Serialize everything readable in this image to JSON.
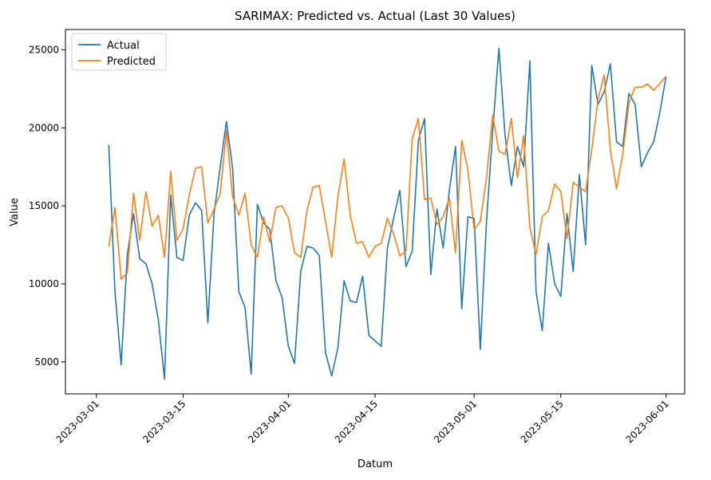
{
  "chart_data": {
    "type": "line",
    "title": "SARIMAX: Predicted vs. Actual (Last 30 Values)",
    "xlabel": "Datum",
    "ylabel": "Value",
    "x_range": [
      "2023-02-24",
      "2023-06-04"
    ],
    "ylim": [
      2950,
      26300
    ],
    "x_ticks": [
      "2023-03-01",
      "2023-03-15",
      "2023-04-01",
      "2023-04-15",
      "2023-05-01",
      "2023-05-15",
      "2023-06-01"
    ],
    "y_ticks": [
      5000,
      10000,
      15000,
      20000,
      25000
    ],
    "grid": false,
    "legend_position": "top-left",
    "series": [
      {
        "name": "Actual",
        "color": "#1f77b4",
        "points": [
          [
            "2023-03-03",
            18900
          ],
          [
            "2023-03-04",
            9500
          ],
          [
            "2023-03-05",
            4800
          ],
          [
            "2023-03-06",
            11900
          ],
          [
            "2023-03-07",
            14500
          ],
          [
            "2023-03-08",
            11600
          ],
          [
            "2023-03-09",
            11300
          ],
          [
            "2023-03-10",
            10000
          ],
          [
            "2023-03-11",
            7700
          ],
          [
            "2023-03-12",
            3900
          ],
          [
            "2023-03-13",
            15700
          ],
          [
            "2023-03-14",
            11700
          ],
          [
            "2023-03-15",
            11500
          ],
          [
            "2023-03-16",
            14400
          ],
          [
            "2023-03-17",
            15200
          ],
          [
            "2023-03-18",
            14700
          ],
          [
            "2023-03-19",
            7500
          ],
          [
            "2023-03-20",
            14500
          ],
          [
            "2023-03-21",
            17500
          ],
          [
            "2023-03-22",
            20400
          ],
          [
            "2023-03-23",
            17400
          ],
          [
            "2023-03-24",
            9500
          ],
          [
            "2023-03-25",
            8500
          ],
          [
            "2023-03-26",
            4200
          ],
          [
            "2023-03-27",
            15100
          ],
          [
            "2023-03-28",
            13900
          ],
          [
            "2023-03-29",
            13500
          ],
          [
            "2023-03-30",
            10200
          ],
          [
            "2023-03-31",
            9100
          ],
          [
            "2023-04-01",
            6000
          ],
          [
            "2023-04-02",
            4900
          ],
          [
            "2023-04-03",
            10800
          ],
          [
            "2023-04-04",
            12400
          ],
          [
            "2023-04-05",
            12300
          ],
          [
            "2023-04-06",
            11800
          ],
          [
            "2023-04-07",
            5600
          ],
          [
            "2023-04-08",
            4100
          ],
          [
            "2023-04-09",
            5900
          ],
          [
            "2023-04-10",
            10200
          ],
          [
            "2023-04-11",
            8900
          ],
          [
            "2023-04-12",
            8800
          ],
          [
            "2023-04-13",
            10500
          ],
          [
            "2023-04-14",
            6700
          ],
          [
            "2023-04-16",
            6000
          ],
          [
            "2023-04-17",
            12300
          ],
          [
            "2023-04-18",
            14200
          ],
          [
            "2023-04-19",
            16000
          ],
          [
            "2023-04-20",
            11100
          ],
          [
            "2023-04-21",
            12100
          ],
          [
            "2023-04-22",
            19200
          ],
          [
            "2023-04-23",
            20600
          ],
          [
            "2023-04-24",
            10600
          ],
          [
            "2023-04-25",
            14800
          ],
          [
            "2023-04-26",
            12300
          ],
          [
            "2023-04-27",
            16000
          ],
          [
            "2023-04-28",
            18800
          ],
          [
            "2023-04-29",
            8400
          ],
          [
            "2023-04-30",
            14300
          ],
          [
            "2023-05-01",
            14200
          ],
          [
            "2023-05-02",
            5800
          ],
          [
            "2023-05-03",
            14000
          ],
          [
            "2023-05-04",
            19800
          ],
          [
            "2023-05-05",
            25100
          ],
          [
            "2023-05-06",
            19500
          ],
          [
            "2023-05-07",
            16300
          ],
          [
            "2023-05-08",
            18800
          ],
          [
            "2023-05-09",
            17500
          ],
          [
            "2023-05-10",
            24300
          ],
          [
            "2023-05-11",
            9500
          ],
          [
            "2023-05-12",
            7000
          ],
          [
            "2023-05-13",
            12600
          ],
          [
            "2023-05-14",
            10000
          ],
          [
            "2023-05-15",
            9200
          ],
          [
            "2023-05-16",
            14500
          ],
          [
            "2023-05-17",
            10800
          ],
          [
            "2023-05-18",
            17000
          ],
          [
            "2023-05-19",
            12500
          ],
          [
            "2023-05-20",
            24000
          ],
          [
            "2023-05-21",
            21500
          ],
          [
            "2023-05-22",
            22300
          ],
          [
            "2023-05-23",
            24100
          ],
          [
            "2023-05-24",
            19100
          ],
          [
            "2023-05-25",
            18800
          ],
          [
            "2023-05-26",
            22200
          ],
          [
            "2023-05-27",
            21500
          ],
          [
            "2023-05-28",
            17500
          ],
          [
            "2023-05-29",
            18400
          ],
          [
            "2023-05-30",
            19100
          ],
          [
            "2023-05-31",
            21000
          ],
          [
            "2023-06-01",
            23300
          ]
        ]
      },
      {
        "name": "Predicted",
        "color": "#ff7f0e",
        "points": [
          [
            "2023-03-03",
            12400
          ],
          [
            "2023-03-04",
            14900
          ],
          [
            "2023-03-05",
            10300
          ],
          [
            "2023-03-06",
            10700
          ],
          [
            "2023-03-07",
            15800
          ],
          [
            "2023-03-08",
            12800
          ],
          [
            "2023-03-09",
            15900
          ],
          [
            "2023-03-10",
            13700
          ],
          [
            "2023-03-11",
            14400
          ],
          [
            "2023-03-12",
            11700
          ],
          [
            "2023-03-13",
            17200
          ],
          [
            "2023-03-14",
            12800
          ],
          [
            "2023-03-15",
            13500
          ],
          [
            "2023-03-16",
            15700
          ],
          [
            "2023-03-17",
            17400
          ],
          [
            "2023-03-18",
            17500
          ],
          [
            "2023-03-19",
            13900
          ],
          [
            "2023-03-20",
            14800
          ],
          [
            "2023-03-21",
            15800
          ],
          [
            "2023-03-22",
            19800
          ],
          [
            "2023-03-23",
            15600
          ],
          [
            "2023-03-24",
            14400
          ],
          [
            "2023-03-25",
            15800
          ],
          [
            "2023-03-26",
            12500
          ],
          [
            "2023-03-27",
            11700
          ],
          [
            "2023-03-28",
            14300
          ],
          [
            "2023-03-29",
            12700
          ],
          [
            "2023-03-30",
            14900
          ],
          [
            "2023-03-31",
            15000
          ],
          [
            "2023-04-01",
            14200
          ],
          [
            "2023-04-02",
            12000
          ],
          [
            "2023-04-03",
            11700
          ],
          [
            "2023-04-04",
            14700
          ],
          [
            "2023-04-05",
            16200
          ],
          [
            "2023-04-06",
            16300
          ],
          [
            "2023-04-07",
            14000
          ],
          [
            "2023-04-08",
            11700
          ],
          [
            "2023-04-09",
            15600
          ],
          [
            "2023-04-10",
            18000
          ],
          [
            "2023-04-11",
            14400
          ],
          [
            "2023-04-12",
            12600
          ],
          [
            "2023-04-13",
            12700
          ],
          [
            "2023-04-14",
            11700
          ],
          [
            "2023-04-15",
            12400
          ],
          [
            "2023-04-16",
            12600
          ],
          [
            "2023-04-17",
            14200
          ],
          [
            "2023-04-18",
            13200
          ],
          [
            "2023-04-19",
            11800
          ],
          [
            "2023-04-20",
            12100
          ],
          [
            "2023-04-21",
            19300
          ],
          [
            "2023-04-22",
            20600
          ],
          [
            "2023-04-23",
            15400
          ],
          [
            "2023-04-24",
            15500
          ],
          [
            "2023-04-25",
            13800
          ],
          [
            "2023-04-26",
            14300
          ],
          [
            "2023-04-27",
            15500
          ],
          [
            "2023-04-28",
            12000
          ],
          [
            "2023-04-29",
            19200
          ],
          [
            "2023-04-30",
            17300
          ],
          [
            "2023-05-01",
            13500
          ],
          [
            "2023-05-02",
            14000
          ],
          [
            "2023-05-03",
            16800
          ],
          [
            "2023-05-04",
            20800
          ],
          [
            "2023-05-05",
            18500
          ],
          [
            "2023-05-06",
            18300
          ],
          [
            "2023-05-07",
            20600
          ],
          [
            "2023-05-08",
            16800
          ],
          [
            "2023-05-09",
            19500
          ],
          [
            "2023-05-10",
            13600
          ],
          [
            "2023-05-11",
            11900
          ],
          [
            "2023-05-12",
            14300
          ],
          [
            "2023-05-13",
            14700
          ],
          [
            "2023-05-14",
            16400
          ],
          [
            "2023-05-15",
            15900
          ],
          [
            "2023-05-16",
            12900
          ],
          [
            "2023-05-17",
            16500
          ],
          [
            "2023-05-18",
            16200
          ],
          [
            "2023-05-19",
            15900
          ],
          [
            "2023-05-20",
            18600
          ],
          [
            "2023-05-21",
            21800
          ],
          [
            "2023-05-22",
            23400
          ],
          [
            "2023-05-23",
            18600
          ],
          [
            "2023-05-24",
            16100
          ],
          [
            "2023-05-25",
            18300
          ],
          [
            "2023-05-26",
            21600
          ],
          [
            "2023-05-27",
            22600
          ],
          [
            "2023-05-28",
            22600
          ],
          [
            "2023-05-29",
            22800
          ],
          [
            "2023-05-30",
            22400
          ],
          [
            "2023-06-01",
            23300
          ]
        ]
      }
    ]
  }
}
